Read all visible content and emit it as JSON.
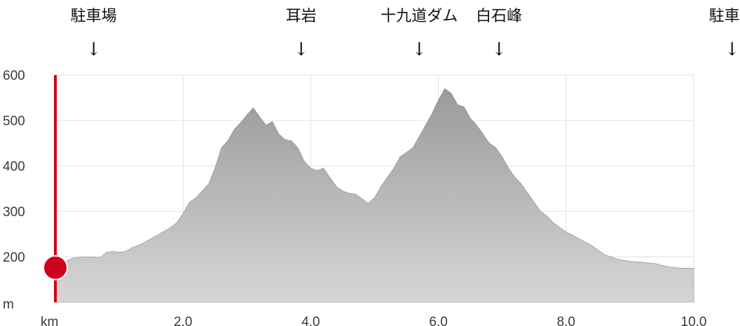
{
  "chart_data": {
    "type": "area",
    "title": "",
    "xlabel": "km",
    "ylabel": "m",
    "xlim": [
      0,
      10.0
    ],
    "ylim": [
      100,
      600
    ],
    "x_ticks": [
      "2.0",
      "4.0",
      "6.0",
      "8.0",
      "10.0"
    ],
    "y_ticks": [
      "200",
      "300",
      "400",
      "500",
      "600"
    ],
    "grid": true,
    "colors": {
      "fill_top": "#9a9a9a",
      "fill_bottom": "#d6d6d6",
      "marker": "#d0021b",
      "grid": "#e0e0e0"
    },
    "landmarks": [
      {
        "label": "駐車場",
        "arrow": "↓",
        "x": 0.6
      },
      {
        "label": "耳岩",
        "arrow": "↓",
        "x": 3.85
      },
      {
        "label": "十九道ダム",
        "arrow": "↓",
        "x": 5.7
      },
      {
        "label": "白石峰",
        "arrow": "↓",
        "x": 6.95
      },
      {
        "label": "駐車場",
        "arrow": "↓",
        "x": 10.6
      }
    ],
    "marker": {
      "x": 0,
      "y": 176
    },
    "x": [
      0,
      0.1,
      0.2,
      0.3,
      0.5,
      0.7,
      0.8,
      0.9,
      1.0,
      1.1,
      1.2,
      1.3,
      1.4,
      1.5,
      1.6,
      1.7,
      1.8,
      1.9,
      2.0,
      2.1,
      2.2,
      2.3,
      2.4,
      2.5,
      2.6,
      2.7,
      2.8,
      2.9,
      3.0,
      3.1,
      3.2,
      3.3,
      3.4,
      3.5,
      3.6,
      3.7,
      3.8,
      3.9,
      4.0,
      4.1,
      4.2,
      4.3,
      4.4,
      4.5,
      4.6,
      4.7,
      4.8,
      4.9,
      5.0,
      5.1,
      5.2,
      5.3,
      5.4,
      5.5,
      5.6,
      5.7,
      5.8,
      5.9,
      6.0,
      6.1,
      6.2,
      6.3,
      6.4,
      6.5,
      6.6,
      6.7,
      6.8,
      6.9,
      7.0,
      7.1,
      7.2,
      7.3,
      7.4,
      7.5,
      7.6,
      7.7,
      7.8,
      7.9,
      8.0,
      8.2,
      8.4,
      8.6,
      8.8,
      9.0,
      9.2,
      9.4,
      9.6,
      9.8,
      10.0
    ],
    "y": [
      176,
      185,
      193,
      198,
      200,
      198,
      210,
      212,
      210,
      212,
      220,
      225,
      232,
      240,
      248,
      256,
      264,
      275,
      295,
      320,
      330,
      345,
      360,
      395,
      440,
      455,
      480,
      495,
      512,
      528,
      508,
      490,
      498,
      470,
      458,
      455,
      440,
      410,
      395,
      390,
      395,
      375,
      355,
      345,
      340,
      338,
      328,
      318,
      330,
      355,
      375,
      395,
      420,
      430,
      440,
      465,
      490,
      515,
      545,
      570,
      560,
      535,
      530,
      505,
      490,
      470,
      450,
      440,
      420,
      395,
      375,
      360,
      340,
      320,
      300,
      290,
      275,
      265,
      255,
      240,
      225,
      205,
      195,
      190,
      188,
      185,
      178,
      175,
      175
    ]
  }
}
